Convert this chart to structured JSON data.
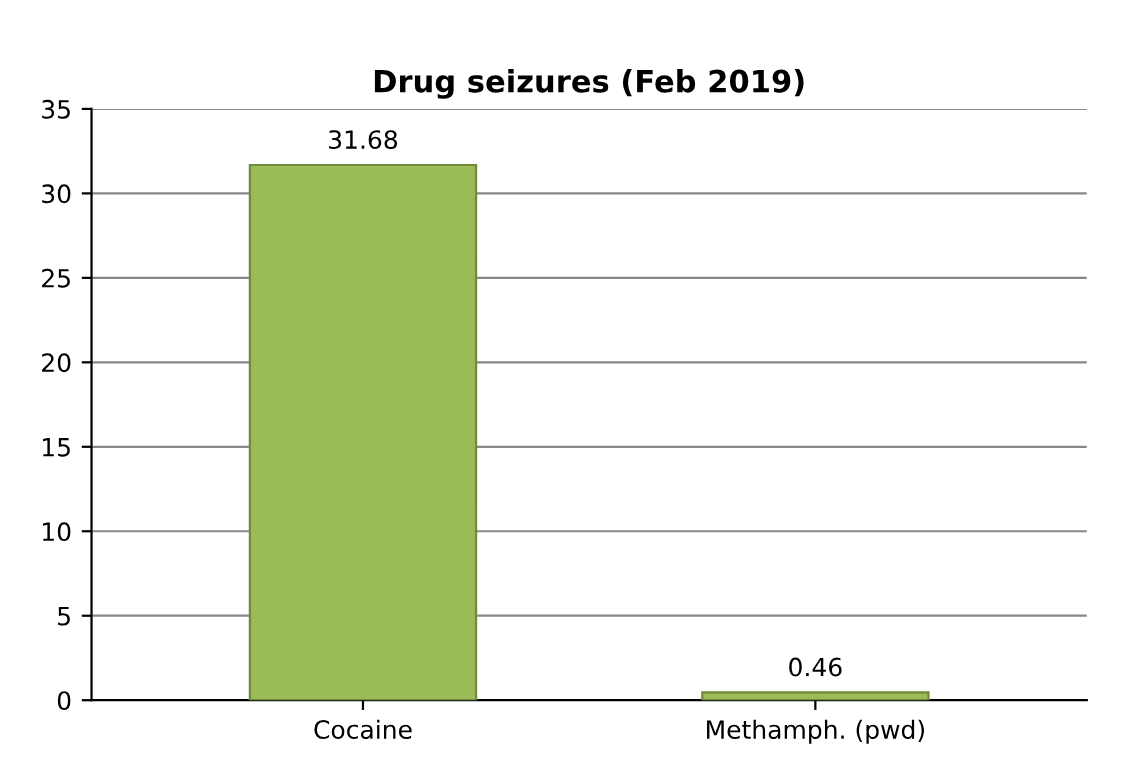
{
  "chart_data": {
    "type": "bar",
    "title": "Drug seizures (Feb 2019)",
    "categories": [
      "Cocaine",
      "Methamph. (pwd)"
    ],
    "values": [
      31.68,
      0.46
    ],
    "color": "#9bbb59",
    "ylim": [
      0,
      35
    ],
    "yticks": [
      0,
      5,
      10,
      15,
      20,
      25,
      30,
      35
    ],
    "grid": "y",
    "data_labels": true
  }
}
